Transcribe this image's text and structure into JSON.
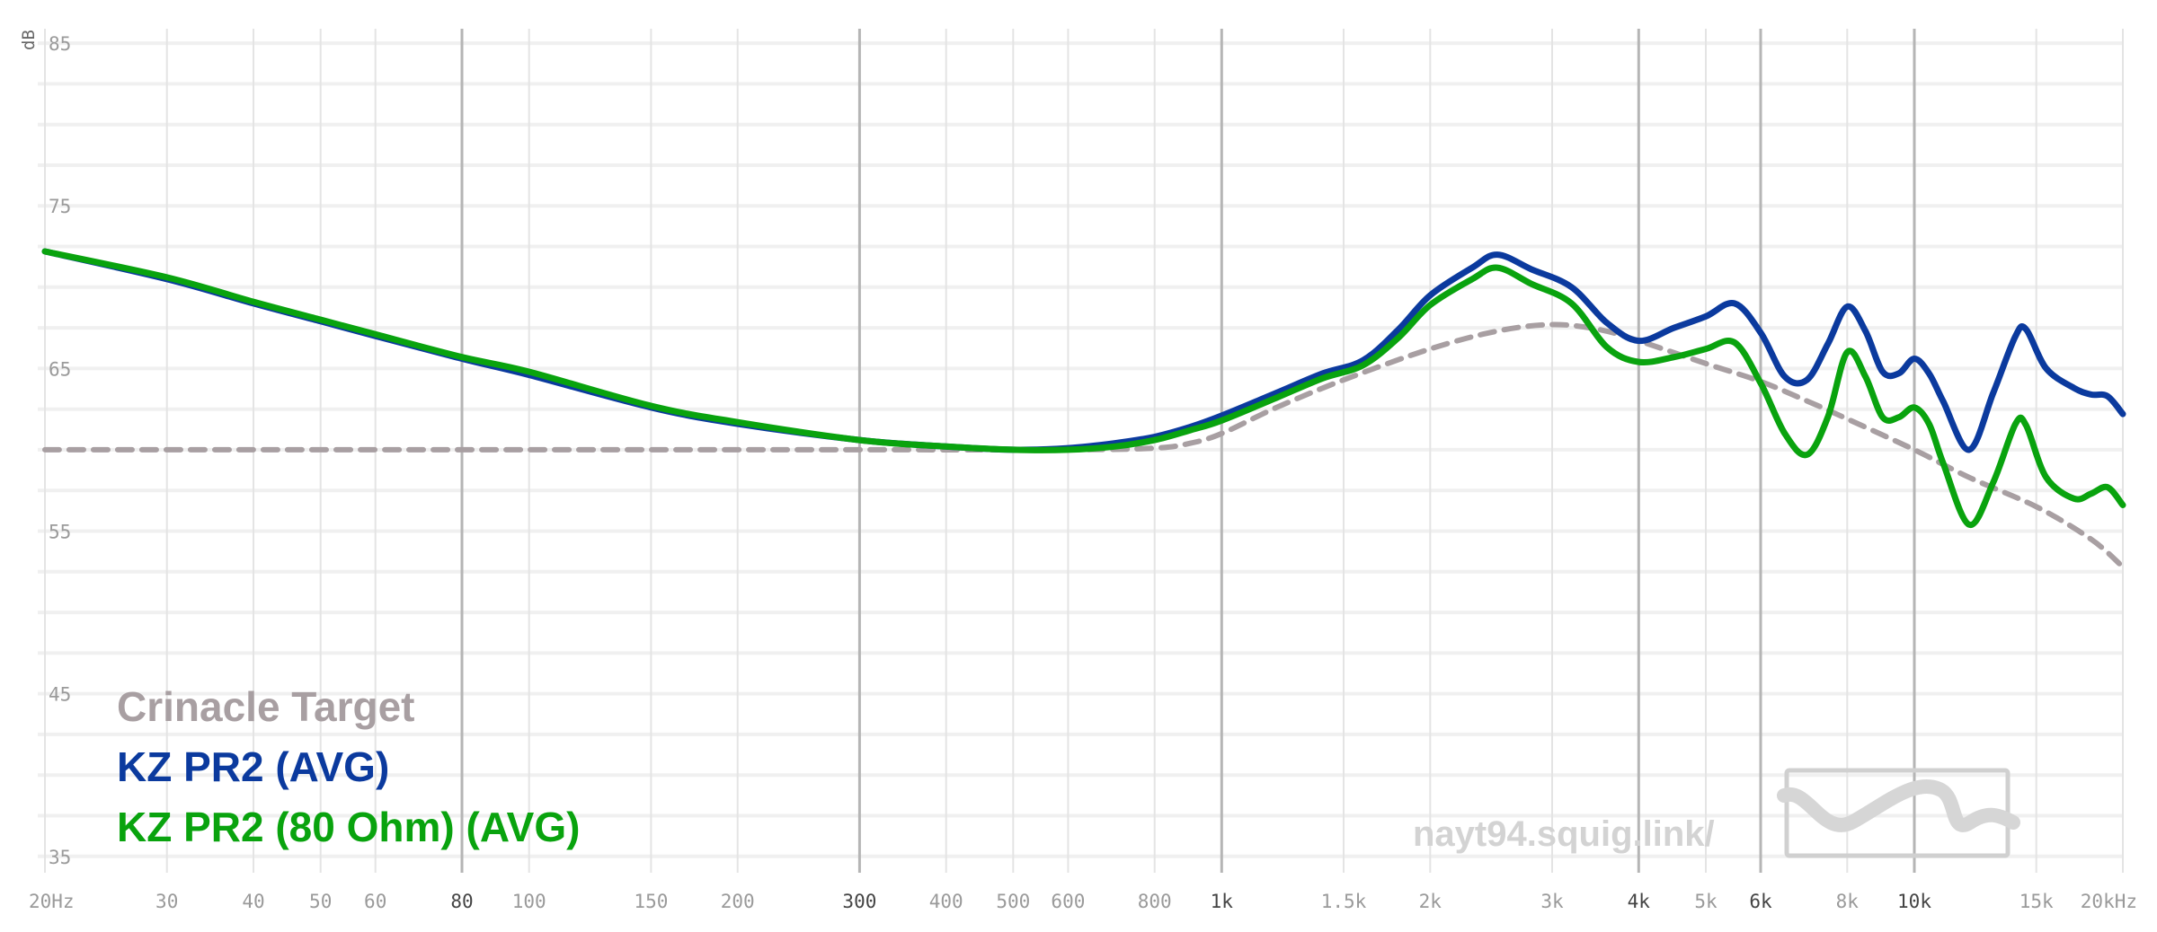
{
  "chart_data": {
    "type": "line",
    "title": "",
    "xlabel": "",
    "ylabel": "dB",
    "x_scale": "log",
    "xlim": [
      20,
      20000
    ],
    "ylim": [
      33,
      86
    ],
    "y_ticks": [
      "85",
      "75",
      "65",
      "55",
      "45",
      "35"
    ],
    "x_ticks": [
      {
        "f": 20,
        "label": "20Hz",
        "major": false
      },
      {
        "f": 30,
        "label": "30",
        "major": false
      },
      {
        "f": 40,
        "label": "40",
        "major": false
      },
      {
        "f": 50,
        "label": "50",
        "major": false
      },
      {
        "f": 60,
        "label": "60",
        "major": false
      },
      {
        "f": 80,
        "label": "80",
        "major": true
      },
      {
        "f": 100,
        "label": "100",
        "major": false
      },
      {
        "f": 150,
        "label": "150",
        "major": false
      },
      {
        "f": 200,
        "label": "200",
        "major": false
      },
      {
        "f": 300,
        "label": "300",
        "major": true
      },
      {
        "f": 400,
        "label": "400",
        "major": false
      },
      {
        "f": 500,
        "label": "500",
        "major": false
      },
      {
        "f": 600,
        "label": "600",
        "major": false
      },
      {
        "f": 800,
        "label": "800",
        "major": false
      },
      {
        "f": 1000,
        "label": "1k",
        "major": true
      },
      {
        "f": 1500,
        "label": "1.5k",
        "major": false
      },
      {
        "f": 2000,
        "label": "2k",
        "major": false
      },
      {
        "f": 3000,
        "label": "3k",
        "major": false
      },
      {
        "f": 4000,
        "label": "4k",
        "major": true
      },
      {
        "f": 5000,
        "label": "5k",
        "major": false
      },
      {
        "f": 6000,
        "label": "6k",
        "major": true
      },
      {
        "f": 8000,
        "label": "8k",
        "major": false
      },
      {
        "f": 10000,
        "label": "10k",
        "major": true
      },
      {
        "f": 15000,
        "label": "15k",
        "major": false
      },
      {
        "f": 20000,
        "label": "20kHz",
        "major": false
      }
    ],
    "series": [
      {
        "name": "Crinacle Target",
        "color": "#a89fa2",
        "dashed": true,
        "points": [
          [
            20,
            60
          ],
          [
            100,
            60
          ],
          [
            300,
            60
          ],
          [
            600,
            60
          ],
          [
            800,
            60.1
          ],
          [
            900,
            60.4
          ],
          [
            1000,
            61.0
          ],
          [
            1200,
            62.6
          ],
          [
            1500,
            64.3
          ],
          [
            2000,
            66.2
          ],
          [
            2500,
            67.3
          ],
          [
            3000,
            67.7
          ],
          [
            3500,
            67.4
          ],
          [
            4000,
            66.7
          ],
          [
            5000,
            65.3
          ],
          [
            6000,
            64.2
          ],
          [
            7000,
            63.0
          ],
          [
            8000,
            61.9
          ],
          [
            10000,
            60.0
          ],
          [
            12000,
            58.3
          ],
          [
            15000,
            56.5
          ],
          [
            18000,
            54.5
          ],
          [
            20000,
            52.8
          ]
        ]
      },
      {
        "name": "KZ PR2 (AVG)",
        "color": "#0b3a9e",
        "dashed": false,
        "points": [
          [
            20,
            72.2
          ],
          [
            30,
            70.5
          ],
          [
            40,
            69.0
          ],
          [
            50,
            67.9
          ],
          [
            60,
            67.0
          ],
          [
            80,
            65.6
          ],
          [
            100,
            64.6
          ],
          [
            150,
            62.6
          ],
          [
            200,
            61.6
          ],
          [
            300,
            60.6
          ],
          [
            400,
            60.2
          ],
          [
            500,
            60.0
          ],
          [
            600,
            60.1
          ],
          [
            700,
            60.4
          ],
          [
            800,
            60.8
          ],
          [
            900,
            61.4
          ],
          [
            1000,
            62.1
          ],
          [
            1200,
            63.5
          ],
          [
            1400,
            64.7
          ],
          [
            1600,
            65.5
          ],
          [
            1800,
            67.4
          ],
          [
            2000,
            69.5
          ],
          [
            2300,
            71.2
          ],
          [
            2500,
            72.0
          ],
          [
            2800,
            71.1
          ],
          [
            3200,
            70.0
          ],
          [
            3600,
            67.8
          ],
          [
            4000,
            66.7
          ],
          [
            4500,
            67.5
          ],
          [
            5000,
            68.2
          ],
          [
            5500,
            69.0
          ],
          [
            6000,
            67.2
          ],
          [
            6500,
            64.5
          ],
          [
            7000,
            64.3
          ],
          [
            7500,
            66.5
          ],
          [
            8000,
            68.8
          ],
          [
            8500,
            67.3
          ],
          [
            9000,
            64.8
          ],
          [
            9500,
            64.7
          ],
          [
            10000,
            65.6
          ],
          [
            10500,
            64.7
          ],
          [
            11000,
            63.0
          ],
          [
            12000,
            60.0
          ],
          [
            13000,
            63.5
          ],
          [
            14000,
            67.0
          ],
          [
            14500,
            67.4
          ],
          [
            15500,
            65.0
          ],
          [
            17000,
            63.8
          ],
          [
            18000,
            63.4
          ],
          [
            19000,
            63.3
          ],
          [
            20000,
            62.2
          ]
        ]
      },
      {
        "name": "KZ PR2 (80 Ohm) (AVG)",
        "color": "#09a30e",
        "dashed": false,
        "points": [
          [
            20,
            72.2
          ],
          [
            30,
            70.6
          ],
          [
            40,
            69.1
          ],
          [
            50,
            68.0
          ],
          [
            60,
            67.1
          ],
          [
            80,
            65.7
          ],
          [
            100,
            64.8
          ],
          [
            150,
            62.7
          ],
          [
            200,
            61.7
          ],
          [
            300,
            60.6
          ],
          [
            400,
            60.2
          ],
          [
            500,
            60.0
          ],
          [
            600,
            60.0
          ],
          [
            700,
            60.2
          ],
          [
            800,
            60.6
          ],
          [
            900,
            61.2
          ],
          [
            1000,
            61.8
          ],
          [
            1200,
            63.2
          ],
          [
            1400,
            64.4
          ],
          [
            1600,
            65.2
          ],
          [
            1800,
            66.9
          ],
          [
            2000,
            68.9
          ],
          [
            2300,
            70.5
          ],
          [
            2500,
            71.2
          ],
          [
            2800,
            70.2
          ],
          [
            3200,
            69.0
          ],
          [
            3600,
            66.3
          ],
          [
            4000,
            65.4
          ],
          [
            4500,
            65.7
          ],
          [
            5000,
            66.2
          ],
          [
            5500,
            66.6
          ],
          [
            6000,
            64.1
          ],
          [
            6500,
            61.0
          ],
          [
            7000,
            59.7
          ],
          [
            7500,
            62.0
          ],
          [
            8000,
            66.0
          ],
          [
            8500,
            64.5
          ],
          [
            9000,
            62.0
          ],
          [
            9500,
            62.0
          ],
          [
            10000,
            62.6
          ],
          [
            10500,
            61.6
          ],
          [
            11000,
            59.2
          ],
          [
            12000,
            55.4
          ],
          [
            13000,
            58.0
          ],
          [
            14000,
            61.6
          ],
          [
            14500,
            61.5
          ],
          [
            15500,
            58.3
          ],
          [
            17000,
            57.0
          ],
          [
            18000,
            57.3
          ],
          [
            19000,
            57.7
          ],
          [
            20000,
            56.6
          ]
        ]
      }
    ],
    "legend_position": "bottom-left",
    "watermark": "nayt94.squig.link/"
  }
}
